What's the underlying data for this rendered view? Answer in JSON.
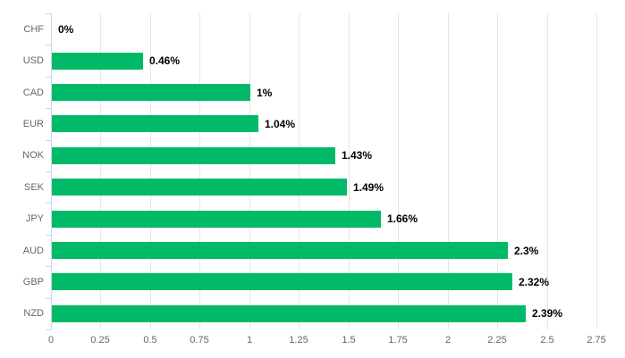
{
  "chart_data": {
    "type": "bar",
    "orientation": "horizontal",
    "title": "",
    "xlabel": "",
    "ylabel": "",
    "legend": false,
    "grid": true,
    "categories": [
      "CHF",
      "USD",
      "CAD",
      "EUR",
      "NOK",
      "SEK",
      "JPY",
      "AUD",
      "GBP",
      "NZD"
    ],
    "values": [
      0,
      0.46,
      1,
      1.04,
      1.43,
      1.49,
      1.66,
      2.3,
      2.32,
      2.39
    ],
    "value_labels": [
      "0%",
      "0.46%",
      "1%",
      "1.04%",
      "1.43%",
      "1.49%",
      "1.66%",
      "2.3%",
      "2.32%",
      "2.39%"
    ],
    "x_ticks": [
      0,
      0.25,
      0.5,
      0.75,
      1,
      1.25,
      1.5,
      1.75,
      2,
      2.25,
      2.5,
      2.75
    ],
    "x_tick_labels": [
      "0",
      "0.25",
      "0.5",
      "0.75",
      "1",
      "1.25",
      "1.5",
      "1.75",
      "2",
      "2.25",
      "2.5",
      "2.75"
    ],
    "xlim": [
      0,
      2.8
    ],
    "colors": {
      "bar": "#00ba68",
      "gridline": "#e6e6e6",
      "axis_line": "#ccd6eb",
      "category_label": "#666666",
      "x_tick_label": "#666666",
      "value_label": "#000000",
      "background": "#ffffff"
    }
  }
}
